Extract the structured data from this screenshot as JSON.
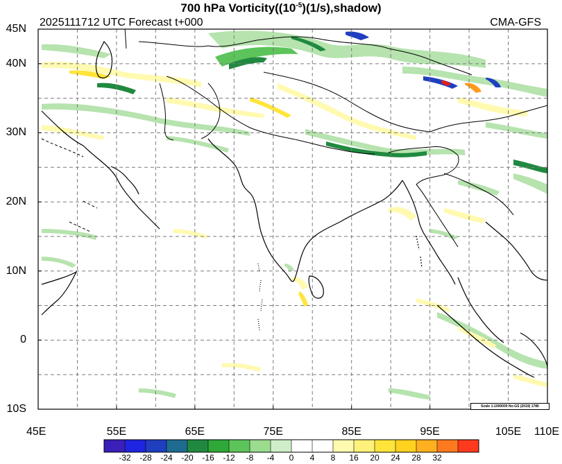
{
  "title": {
    "prefix": "700 hPa Vorticity((10",
    "exponent": "-5",
    "suffix": ")(1/s),shadow)"
  },
  "subtitle_left": "2025111712 UTC Forecast t+000",
  "subtitle_right": "CMA-GFS",
  "scale_note": "Scale 1:1000000 No:GS (2019) 1786",
  "map": {
    "lon_min": 45,
    "lon_max": 110,
    "lat_min": -10,
    "lat_max": 45,
    "lat_labels": [
      {
        "lat": 45,
        "text": "45N"
      },
      {
        "lat": 40,
        "text": "40N"
      },
      {
        "lat": 30,
        "text": "30N"
      },
      {
        "lat": 20,
        "text": "20N"
      },
      {
        "lat": 10,
        "text": "10N"
      },
      {
        "lat": 0,
        "text": "0"
      },
      {
        "lat": -10,
        "text": "10S"
      }
    ],
    "lon_labels": [
      {
        "lon": 45,
        "text": "45E"
      },
      {
        "lon": 55,
        "text": "55E"
      },
      {
        "lon": 65,
        "text": "65E"
      },
      {
        "lon": 75,
        "text": "75E"
      },
      {
        "lon": 85,
        "text": "85E"
      },
      {
        "lon": 95,
        "text": "95E"
      },
      {
        "lon": 105,
        "text": "105E"
      },
      {
        "lon": 110,
        "text": "110E"
      }
    ],
    "grid_lons": [
      50,
      55,
      60,
      65,
      70,
      75,
      80,
      85,
      90,
      95,
      100,
      105
    ],
    "grid_lats": [
      -5,
      0,
      5,
      10,
      15,
      20,
      25,
      30,
      35,
      40
    ]
  },
  "colorbar": {
    "colors": [
      "#3a1fb8",
      "#1f24e0",
      "#1f3fc0",
      "#1f6b8f",
      "#1f8a3f",
      "#2fa83a",
      "#5cc45a",
      "#9bdc8f",
      "#cfeec8",
      "#ffffff",
      "#ffffff",
      "#fffab0",
      "#fff27a",
      "#ffe53a",
      "#ffd21f",
      "#ffb01f",
      "#ff7a1f",
      "#ff3a1f"
    ],
    "labels": [
      "-32",
      "-28",
      "-24",
      "-20",
      "-16",
      "-12",
      "-8",
      "-4",
      "0",
      "4",
      "8",
      "16",
      "20",
      "24",
      "28",
      "32"
    ]
  },
  "colors": {
    "green_light": "#b6e3ae",
    "green_mid": "#5cc45a",
    "green_dark": "#1f8a3f",
    "yellow_light": "#fffab0",
    "yellow": "#ffe53a",
    "orange": "#ff9a1f",
    "red": "#e02020",
    "blue": "#1f3fc0"
  }
}
